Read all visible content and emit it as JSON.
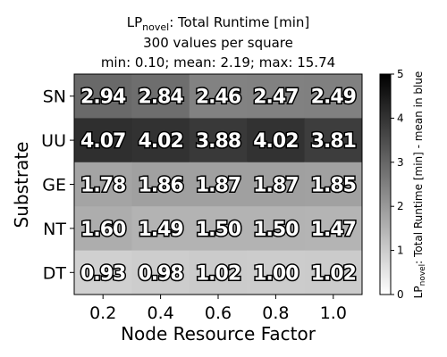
{
  "chart_data": {
    "type": "heatmap",
    "title": {
      "line1_prefix": "LP",
      "line1_sub": "novel",
      "line1_rest": ": Total Runtime [min]",
      "line2": "300 values per square",
      "line3": "min: 0.10; mean: 2.19; max: 15.74"
    },
    "xlabel": "Node Resource Factor",
    "ylabel": "Substrate",
    "x_categories": [
      "0.2",
      "0.4",
      "0.6",
      "0.8",
      "1.0"
    ],
    "y_categories": [
      "SN",
      "UU",
      "GE",
      "NT",
      "DT"
    ],
    "values": [
      [
        2.94,
        2.84,
        2.46,
        2.47,
        2.49
      ],
      [
        4.07,
        4.02,
        3.88,
        4.02,
        3.81
      ],
      [
        1.78,
        1.86,
        1.87,
        1.87,
        1.85
      ],
      [
        1.6,
        1.49,
        1.5,
        1.5,
        1.47
      ],
      [
        0.93,
        0.98,
        1.02,
        1.0,
        1.02
      ]
    ],
    "value_labels": [
      [
        "2.94",
        "2.84",
        "2.46",
        "2.47",
        "2.49"
      ],
      [
        "4.07",
        "4.02",
        "3.88",
        "4.02",
        "3.81"
      ],
      [
        "1.78",
        "1.86",
        "1.87",
        "1.87",
        "1.85"
      ],
      [
        "1.60",
        "1.49",
        "1.50",
        "1.50",
        "1.47"
      ],
      [
        "0.93",
        "0.98",
        "1.02",
        "1.00",
        "1.02"
      ]
    ],
    "colorbar": {
      "label_prefix": "LP",
      "label_sub": "novel",
      "label_rest": ": Total Runtime [min] - mean in blue",
      "range": [
        0,
        5
      ],
      "ticks": [
        "0",
        "1",
        "2",
        "3",
        "4",
        "5"
      ],
      "colormap": "Greys"
    }
  }
}
